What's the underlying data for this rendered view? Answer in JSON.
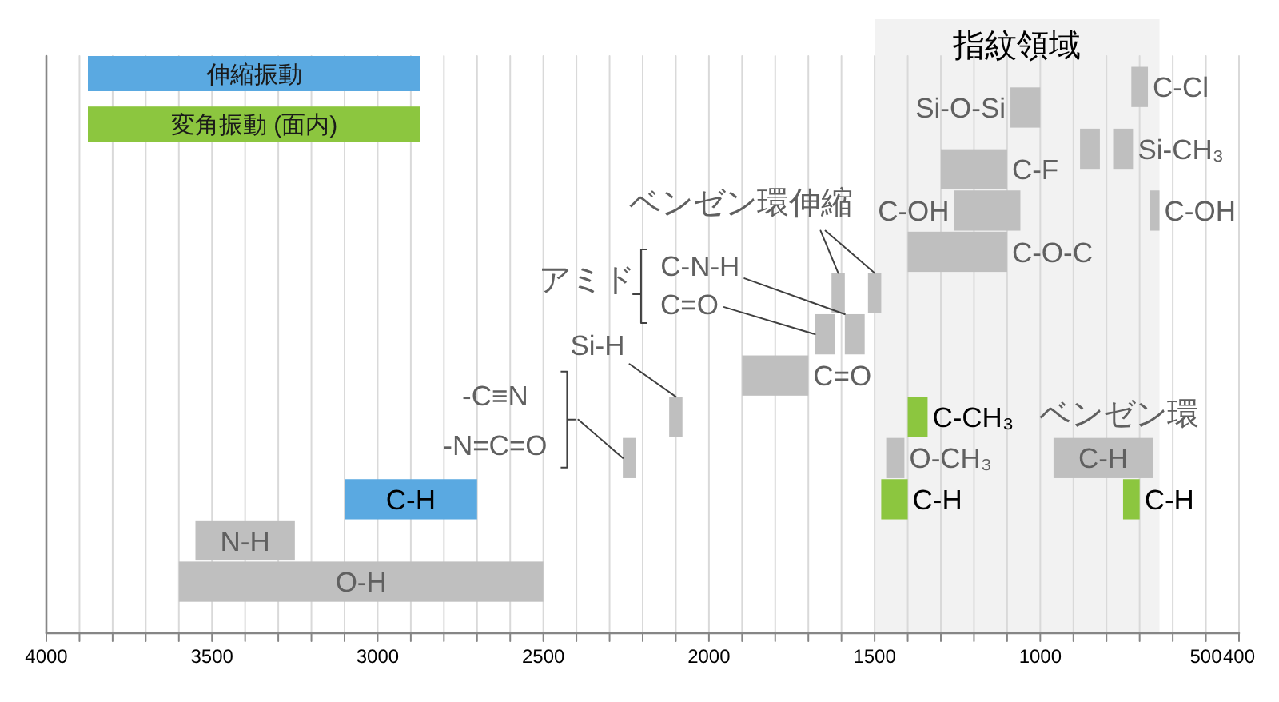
{
  "chart_data": {
    "type": "bar",
    "orientation": "horizontal",
    "categories": [
      null,
      null,
      null,
      null,
      null,
      null,
      null,
      null,
      null,
      null,
      null,
      null,
      null,
      null,
      null,
      null,
      null,
      null,
      null,
      null,
      null,
      null,
      null,
      null,
      null,
      null,
      null,
      null
    ],
    "series": [
      {
        "name": "伸縮振動",
        "color": "#5aa9e1",
        "values": [
          null,
          null,
          null,
          null,
          null,
          null,
          null,
          null,
          null,
          null,
          null,
          null,
          null,
          null,
          null,
          null,
          null,
          null,
          null,
          null,
          null,
          400,
          null,
          null,
          null,
          null,
          null,
          null
        ],
        "base": [
          null,
          null,
          null,
          null,
          null,
          null,
          null,
          null,
          null,
          null,
          null,
          null,
          null,
          null,
          null,
          null,
          null,
          null,
          null,
          null,
          null,
          2700,
          null,
          null,
          null,
          null,
          null,
          null
        ],
        "value_labels": [
          null,
          null,
          null,
          null,
          null,
          null,
          null,
          null,
          null,
          null,
          null,
          null,
          null,
          null,
          null,
          null,
          null,
          null,
          null,
          null,
          null,
          "C-H",
          null,
          null,
          null,
          null,
          null,
          null
        ]
      },
      {
        "name": "変角振動 (面内)",
        "color": "#8cc63f",
        "values": [
          null,
          null,
          null,
          null,
          null,
          null,
          null,
          null,
          null,
          null,
          null,
          null,
          null,
          null,
          null,
          null,
          null,
          60,
          null,
          null,
          null,
          80,
          null,
          null,
          null,
          null,
          null,
          null
        ],
        "base": [
          null,
          null,
          null,
          null,
          null,
          null,
          null,
          null,
          null,
          null,
          null,
          null,
          null,
          null,
          null,
          null,
          null,
          1340,
          null,
          null,
          null,
          1400,
          null,
          null,
          null,
          null,
          null,
          null
        ],
        "value_labels": [
          null,
          null,
          null,
          null,
          null,
          null,
          null,
          null,
          null,
          null,
          null,
          null,
          null,
          null,
          null,
          null,
          null,
          "C-CH₃",
          null,
          null,
          null,
          "C-H",
          null,
          null,
          null,
          null,
          null,
          null
        ]
      },
      {
        "color": "#8cc63f",
        "values": [
          null,
          null,
          null,
          null,
          null,
          null,
          null,
          null,
          null,
          null,
          null,
          null,
          null,
          null,
          null,
          null,
          null,
          null,
          null,
          null,
          null,
          50,
          null,
          null,
          null,
          null,
          null,
          null
        ],
        "base": [
          null,
          null,
          null,
          null,
          null,
          null,
          null,
          null,
          null,
          null,
          null,
          null,
          null,
          null,
          null,
          null,
          null,
          null,
          null,
          null,
          null,
          700,
          null,
          null,
          null,
          null,
          null,
          null
        ],
        "value_labels": [
          null,
          null,
          null,
          null,
          null,
          null,
          null,
          null,
          null,
          null,
          null,
          null,
          null,
          null,
          null,
          null,
          null,
          null,
          null,
          null,
          null,
          "C-H",
          null,
          null,
          null,
          null,
          null,
          null
        ]
      },
      {
        "color": "#bfbfbf",
        "values": [
          null,
          50,
          90,
          null,
          60,
          200,
          null,
          200,
          null,
          300,
          null,
          40,
          null,
          60,
          null,
          200,
          null,
          40,
          null,
          40,
          null,
          null,
          null,
          300,
          null,
          1100,
          null,
          null
        ],
        "base": [
          null,
          675,
          1000,
          null,
          820,
          1100,
          null,
          1060,
          null,
          1100,
          null,
          1590,
          null,
          1620,
          null,
          1700,
          null,
          2080,
          null,
          2220,
          null,
          null,
          null,
          3250,
          null,
          2500,
          null,
          null
        ],
        "value_labels": [
          null,
          "C-Cl",
          "Si-O-Si",
          null,
          null,
          "C-F",
          null,
          "C-OH",
          null,
          "C-O-C",
          null,
          null,
          null,
          "C=O",
          null,
          "C=O",
          null,
          "Si-H",
          null,
          "-C≡N\n-N=C=O",
          null,
          null,
          null,
          "N-H",
          null,
          "O-H",
          null,
          null
        ]
      },
      {
        "color": "#bfbfbf",
        "values": [
          null,
          null,
          null,
          null,
          60,
          null,
          null,
          30,
          null,
          null,
          null,
          40,
          null,
          60,
          null,
          null,
          null,
          null,
          null,
          55,
          null,
          null,
          null,
          null,
          null,
          null,
          null,
          null
        ],
        "base": [
          null,
          null,
          null,
          null,
          720,
          null,
          null,
          640,
          null,
          null,
          null,
          1480,
          null,
          1530,
          null,
          null,
          null,
          null,
          null,
          1410,
          null,
          null,
          null,
          null,
          null,
          null,
          null,
          null
        ],
        "value_labels": [
          null,
          null,
          null,
          null,
          "Si-CH₃",
          null,
          null,
          "C-OH",
          null,
          null,
          null,
          null,
          null,
          "C-N-H",
          null,
          null,
          null,
          null,
          null,
          "O-CH₃",
          null,
          null,
          null,
          null,
          null,
          null,
          null,
          null
        ]
      },
      {
        "color": "#bfbfbf",
        "values": [
          null,
          null,
          null,
          null,
          null,
          null,
          null,
          null,
          null,
          null,
          null,
          null,
          null,
          null,
          null,
          null,
          null,
          null,
          null,
          300,
          null,
          null,
          null,
          null,
          null,
          null,
          null,
          null
        ],
        "base": [
          null,
          null,
          null,
          null,
          null,
          null,
          null,
          null,
          null,
          null,
          null,
          null,
          null,
          null,
          null,
          null,
          null,
          null,
          null,
          660,
          null,
          null,
          null,
          null,
          null,
          null,
          null,
          null
        ],
        "value_labels": [
          null,
          null,
          null,
          null,
          null,
          null,
          null,
          null,
          null,
          null,
          null,
          null,
          null,
          null,
          null,
          null,
          null,
          null,
          null,
          "C-H",
          null,
          null,
          null,
          null,
          null,
          null,
          null,
          null
        ]
      }
    ],
    "xlim": [
      4000,
      400
    ],
    "xticks": [
      4000,
      {
        "value": 3900,
        "label": null
      },
      {
        "value": 3800,
        "label": null
      },
      {
        "value": 3700,
        "label": null
      },
      {
        "value": 3600,
        "label": null
      },
      3500,
      {
        "value": 3400,
        "label": null
      },
      {
        "value": 3300,
        "label": null
      },
      {
        "value": 3200,
        "label": null
      },
      {
        "value": 3100,
        "label": null
      },
      3000,
      {
        "value": 2900,
        "label": null
      },
      {
        "value": 2800,
        "label": null
      },
      {
        "value": 2700,
        "label": null
      },
      {
        "value": 2600,
        "label": null
      },
      2500,
      {
        "value": 2400,
        "label": null
      },
      {
        "value": 2300,
        "label": null
      },
      {
        "value": 2200,
        "label": null
      },
      {
        "value": 2100,
        "label": null
      },
      2000,
      {
        "value": 1900,
        "label": null
      },
      {
        "value": 1800,
        "label": null
      },
      {
        "value": 1700,
        "label": null
      },
      {
        "value": 1600,
        "label": null
      },
      1500,
      {
        "value": 1400,
        "label": null
      },
      {
        "value": 1300,
        "label": null
      },
      {
        "value": 1200,
        "label": null
      },
      {
        "value": 1100,
        "label": null
      },
      1000,
      {
        "value": 900,
        "label": null
      },
      {
        "value": 800,
        "label": null
      },
      {
        "value": 700,
        "label": null
      },
      {
        "value": 600,
        "label": null
      },
      500,
      400
    ],
    "grid": "x",
    "legend": "top left",
    "tick_labels": "x",
    "bands": [
      {
        "axis": "x",
        "from": 1500,
        "to": 640,
        "label": "指紋領域",
        "color": "#f2f2f2"
      }
    ],
    "annotations": [
      "ベンゼン環伸縮",
      "アミド",
      "ベンゼン環"
    ]
  }
}
